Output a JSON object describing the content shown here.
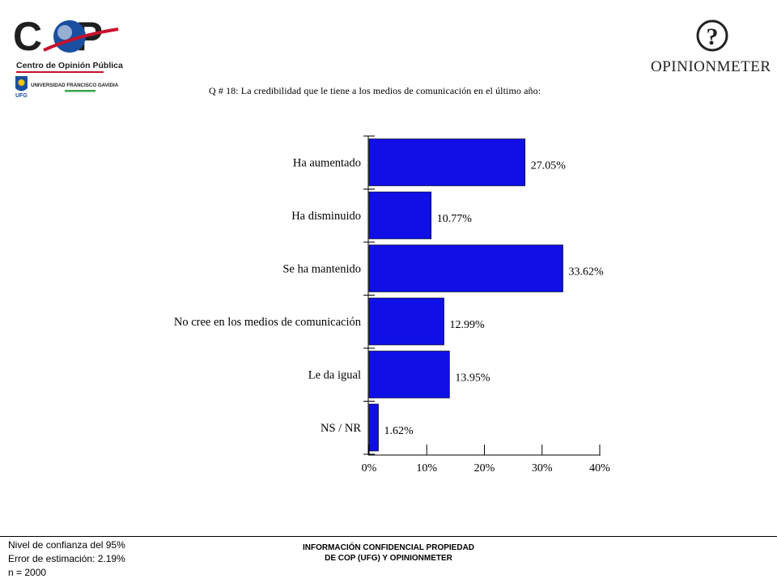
{
  "header": {
    "cop_brand": "C   P",
    "cop_subtitle": "Centro de Opinión Pública",
    "university": "UNIVERSIDAD FRANCISCO GAVIDIA",
    "university_abbr": "UFG",
    "opinionmeter_logo": "OPINIONMETER",
    "opinionmeter_symbol": "?"
  },
  "colors": {
    "bar": "#0f0fe6",
    "bar_stroke": "#000000",
    "cop_red": "#c8102e",
    "cop_blue": "#1a4fa0"
  },
  "chart_data": {
    "type": "bar",
    "orientation": "horizontal",
    "title": "Q # 18: La credibilidad que le tiene a los medios de comunicación en el último año:",
    "categories": [
      "Ha aumentado",
      "Ha disminuido",
      "Se ha mantenido",
      "No cree en los medios de comunicación",
      "Le da igual",
      "NS / NR"
    ],
    "values": [
      27.05,
      10.77,
      33.62,
      12.99,
      13.95,
      1.62
    ],
    "value_labels": [
      "27.05%",
      "10.77%",
      "33.62%",
      "12.99%",
      "13.95%",
      "1.62%"
    ],
    "xlim": [
      0,
      40
    ],
    "xticks": [
      "0%",
      "10%",
      "20%",
      "30%",
      "40%"
    ],
    "grid": false,
    "legend": "none"
  },
  "footer": {
    "confidence": "Nivel de confianza del 95%",
    "error": "Error de estimación: 2.19%",
    "n": "n = 2000",
    "confidential_line1": "INFORMACIÓN CONFIDENCIAL PROPIEDAD",
    "confidential_line2": "DE COP (UFG) Y OPINIONMETER"
  }
}
